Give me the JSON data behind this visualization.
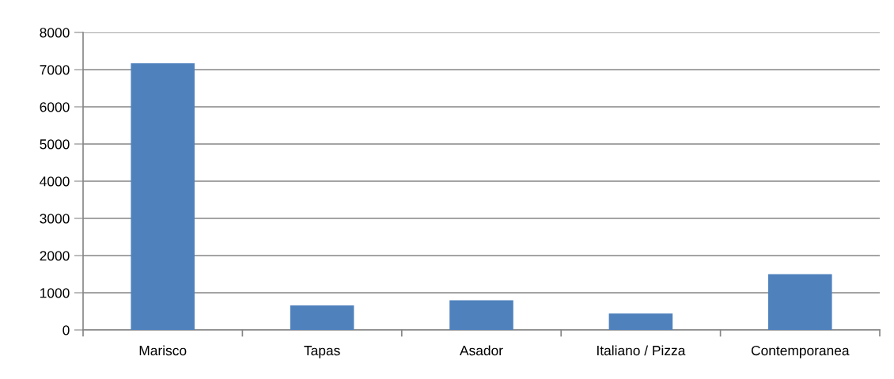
{
  "chart_data": {
    "type": "bar",
    "categories": [
      "Marisco",
      "Tapas",
      "Asador",
      "Italiano / Pizza",
      "Contemporanea"
    ],
    "values": [
      7170,
      660,
      800,
      440,
      1500
    ],
    "color": "#4f81bd",
    "ylim": [
      0,
      8000
    ],
    "yticks": [
      0,
      1000,
      2000,
      3000,
      4000,
      5000,
      6000,
      7000,
      8000
    ],
    "grid": "y",
    "legend": false
  }
}
